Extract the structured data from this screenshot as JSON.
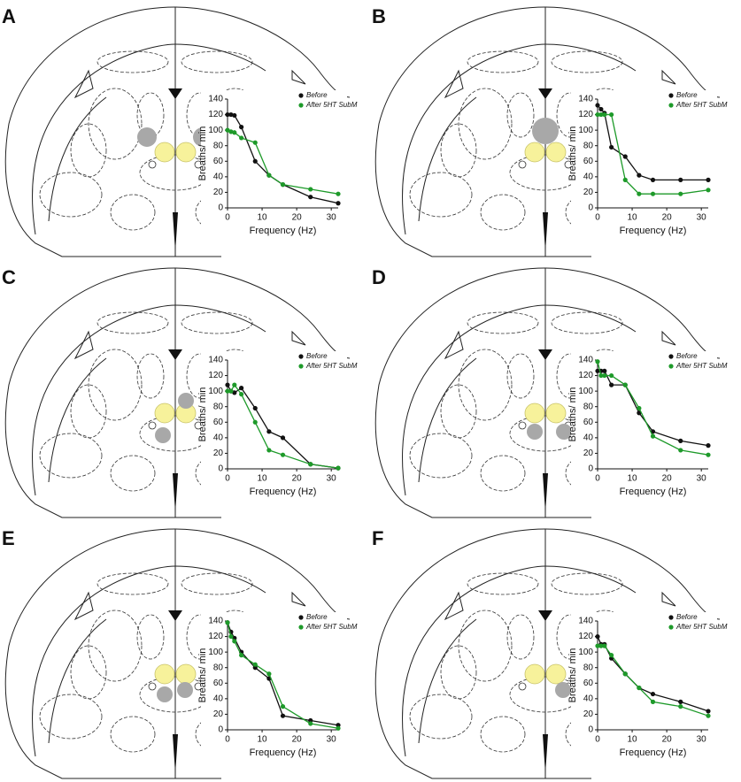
{
  "chart_data": [
    {
      "type": "line",
      "panel": "A",
      "x": [
        0,
        1,
        2,
        4,
        8,
        12,
        16,
        24,
        32
      ],
      "xlim": [
        0,
        32
      ],
      "ylim": [
        0,
        140
      ],
      "xticks": [
        0,
        10,
        20,
        30
      ],
      "yticks": [
        0,
        20,
        40,
        60,
        80,
        100,
        120,
        140
      ],
      "xlabel": "Frequency (Hz)",
      "ylabel": "Breaths/ min",
      "series": [
        {
          "name": "Before",
          "color": "#111111",
          "values": [
            120,
            120,
            119,
            104,
            60,
            42,
            30,
            14,
            6
          ]
        },
        {
          "name": "After 5HT SubM",
          "color": "#1e9a2a",
          "values": [
            100,
            98,
            97,
            90,
            84,
            42,
            30,
            24,
            18
          ]
        }
      ]
    },
    {
      "type": "line",
      "panel": "B",
      "x": [
        0,
        1,
        2,
        4,
        8,
        12,
        16,
        24,
        32
      ],
      "xlim": [
        0,
        32
      ],
      "ylim": [
        0,
        140
      ],
      "xticks": [
        0,
        10,
        20,
        30
      ],
      "yticks": [
        0,
        20,
        40,
        60,
        80,
        100,
        120,
        140
      ],
      "xlabel": "Frequency (Hz)",
      "ylabel": "Breaths/ min",
      "series": [
        {
          "name": "Before",
          "color": "#111111",
          "values": [
            132,
            127,
            122,
            78,
            66,
            42,
            36,
            36,
            36
          ]
        },
        {
          "name": "After 5HT SubM",
          "color": "#1e9a2a",
          "values": [
            120,
            120,
            120,
            120,
            36,
            18,
            18,
            18,
            23
          ]
        }
      ]
    },
    {
      "type": "line",
      "panel": "C",
      "x": [
        0,
        1,
        2,
        4,
        8,
        12,
        16,
        24,
        32
      ],
      "xlim": [
        0,
        32
      ],
      "ylim": [
        0,
        140
      ],
      "xticks": [
        0,
        10,
        20,
        30
      ],
      "yticks": [
        0,
        20,
        40,
        60,
        80,
        100,
        120,
        140
      ],
      "xlabel": "Frequency (Hz)",
      "ylabel": "Breaths/ min",
      "series": [
        {
          "name": "Before",
          "color": "#111111",
          "values": [
            108,
            100,
            98,
            104,
            78,
            48,
            40,
            6,
            1
          ]
        },
        {
          "name": "After 5HT SubM",
          "color": "#1e9a2a",
          "values": [
            100,
            100,
            108,
            96,
            60,
            24,
            18,
            6,
            1
          ]
        }
      ]
    },
    {
      "type": "line",
      "panel": "D",
      "x": [
        0,
        1,
        2,
        4,
        8,
        12,
        16,
        24,
        32
      ],
      "xlim": [
        0,
        32
      ],
      "ylim": [
        0,
        140
      ],
      "xticks": [
        0,
        10,
        20,
        30
      ],
      "yticks": [
        0,
        20,
        40,
        60,
        80,
        100,
        120,
        140
      ],
      "xlabel": "Frequency (Hz)",
      "ylabel": "Breaths/ min",
      "series": [
        {
          "name": "Before",
          "color": "#111111",
          "values": [
            126,
            126,
            126,
            108,
            108,
            72,
            48,
            36,
            30
          ]
        },
        {
          "name": "After 5HT SubM",
          "color": "#1e9a2a",
          "values": [
            138,
            120,
            120,
            120,
            108,
            78,
            42,
            24,
            18
          ]
        }
      ]
    },
    {
      "type": "line",
      "panel": "E",
      "x": [
        0,
        1,
        2,
        4,
        8,
        12,
        16,
        24,
        32
      ],
      "xlim": [
        0,
        32
      ],
      "ylim": [
        0,
        140
      ],
      "xticks": [
        0,
        10,
        20,
        30
      ],
      "yticks": [
        0,
        20,
        40,
        60,
        80,
        100,
        120,
        140
      ],
      "xlabel": "Frequency (Hz)",
      "ylabel": "Breaths/ min",
      "series": [
        {
          "name": "Before",
          "color": "#111111",
          "values": [
            138,
            126,
            118,
            100,
            80,
            66,
            18,
            12,
            6
          ]
        },
        {
          "name": "After 5HT SubM",
          "color": "#1e9a2a",
          "values": [
            138,
            120,
            114,
            96,
            84,
            72,
            30,
            8,
            2
          ]
        }
      ]
    },
    {
      "type": "line",
      "panel": "F",
      "x": [
        0,
        1,
        2,
        4,
        8,
        12,
        16,
        24,
        32
      ],
      "xlim": [
        0,
        32
      ],
      "ylim": [
        0,
        140
      ],
      "xticks": [
        0,
        10,
        20,
        30
      ],
      "yticks": [
        0,
        20,
        40,
        60,
        80,
        100,
        120,
        140
      ],
      "xlabel": "Frequency (Hz)",
      "ylabel": "Breaths/ min",
      "series": [
        {
          "name": "Before",
          "color": "#111111",
          "values": [
            120,
            110,
            110,
            92,
            72,
            54,
            46,
            36,
            24
          ]
        },
        {
          "name": "After 5HT SubM",
          "color": "#1e9a2a",
          "values": [
            108,
            108,
            108,
            96,
            72,
            54,
            36,
            30,
            18
          ]
        }
      ]
    }
  ]
}
